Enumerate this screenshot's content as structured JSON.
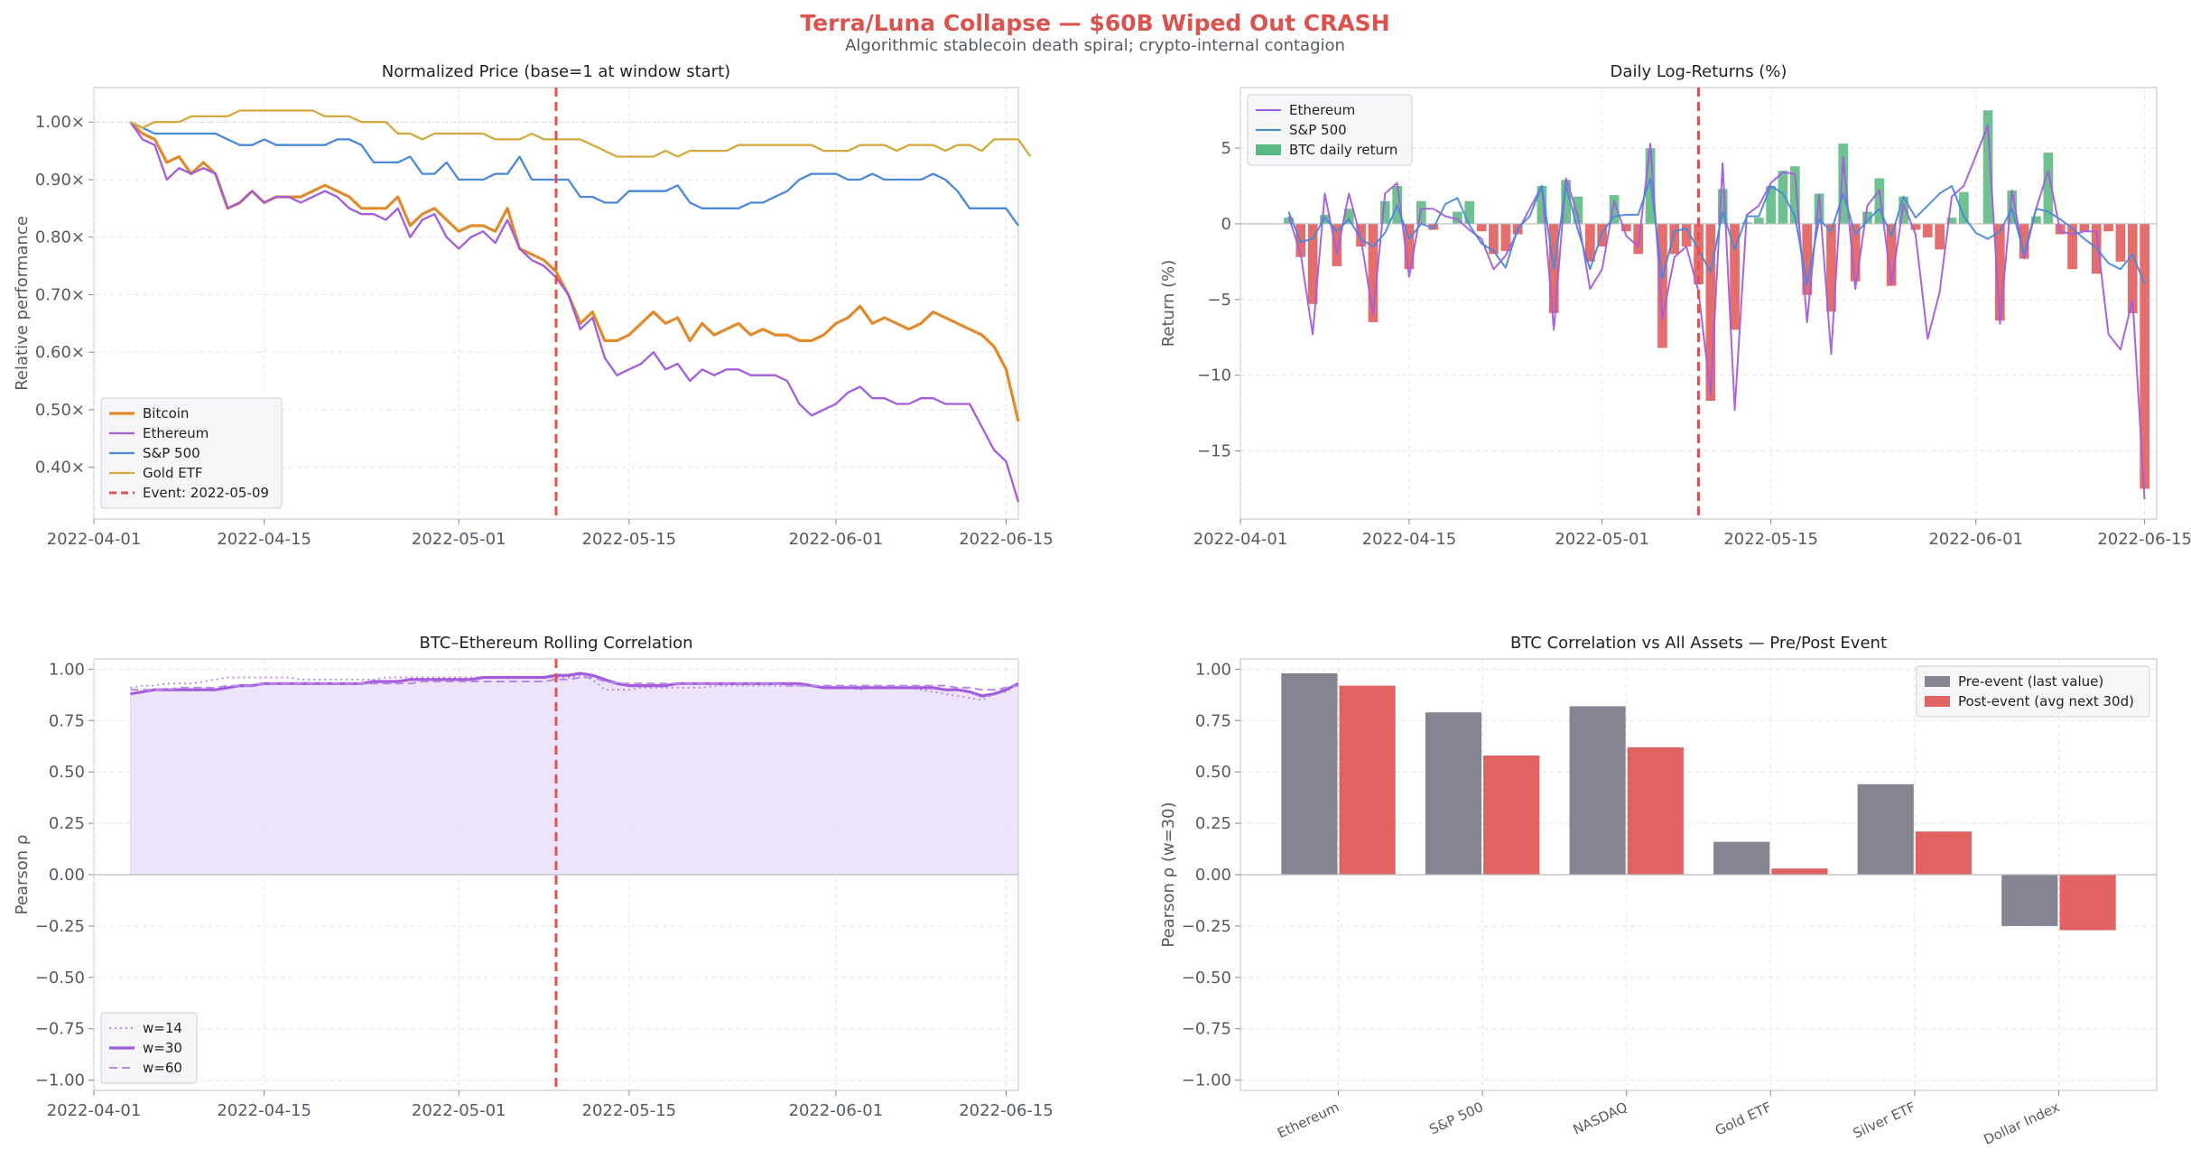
{
  "figure": {
    "title": "Terra/Luna Collapse — $60B Wiped Out  CRASH",
    "subtitle": "Algorithmic stablecoin death spiral; crypto-internal contagion",
    "title_color": "#d9534f"
  },
  "chart_data": [
    {
      "id": "price",
      "type": "line",
      "title": "Normalized Price (base=1 at window start)",
      "xlabel": "",
      "ylabel": "Relative performance",
      "xlim": [
        "2022-04-01",
        "2022-06-16"
      ],
      "ylim": [
        0.31,
        1.06
      ],
      "xticks": [
        "2022-04-01",
        "2022-04-15",
        "2022-05-01",
        "2022-05-15",
        "2022-06-01",
        "2022-06-15"
      ],
      "yticks": [
        0.4,
        0.5,
        0.6,
        0.7,
        0.8,
        0.9,
        1.0
      ],
      "ytick_labels": [
        "0.40×",
        "0.50×",
        "0.60×",
        "0.70×",
        "0.80×",
        "0.90×",
        "1.00×"
      ],
      "grid": true,
      "legend_position": "lower-left",
      "event": {
        "date": "2022-05-09",
        "label": "Event: 2022-05-09",
        "color": "#e05252"
      },
      "series": [
        {
          "name": "Bitcoin",
          "color": "#e08a2c",
          "width": 3.2,
          "start": "2022-04-04",
          "values": [
            1.0,
            0.98,
            0.97,
            0.93,
            0.94,
            0.91,
            0.93,
            0.91,
            0.85,
            0.86,
            0.88,
            0.86,
            0.87,
            0.87,
            0.87,
            0.88,
            0.89,
            0.88,
            0.87,
            0.85,
            0.85,
            0.85,
            0.87,
            0.82,
            0.84,
            0.85,
            0.83,
            0.81,
            0.82,
            0.82,
            0.81,
            0.85,
            0.78,
            0.77,
            0.76,
            0.74,
            0.7,
            0.65,
            0.67,
            0.62,
            0.62,
            0.63,
            0.65,
            0.67,
            0.65,
            0.66,
            0.62,
            0.65,
            0.63,
            0.64,
            0.65,
            0.63,
            0.64,
            0.63,
            0.63,
            0.62,
            0.62,
            0.63,
            0.65,
            0.66,
            0.68,
            0.65,
            0.66,
            0.65,
            0.64,
            0.65,
            0.67,
            0.66,
            0.65,
            0.64,
            0.63,
            0.61,
            0.57,
            0.48
          ]
        },
        {
          "name": "Ethereum",
          "color": "#a35ddc",
          "width": 2.3,
          "start": "2022-04-04",
          "values": [
            1.0,
            0.97,
            0.96,
            0.9,
            0.92,
            0.91,
            0.92,
            0.91,
            0.85,
            0.86,
            0.88,
            0.86,
            0.87,
            0.87,
            0.86,
            0.87,
            0.88,
            0.87,
            0.85,
            0.84,
            0.84,
            0.83,
            0.85,
            0.8,
            0.83,
            0.84,
            0.8,
            0.78,
            0.8,
            0.81,
            0.79,
            0.83,
            0.78,
            0.76,
            0.75,
            0.73,
            0.7,
            0.64,
            0.66,
            0.59,
            0.56,
            0.57,
            0.58,
            0.6,
            0.57,
            0.58,
            0.55,
            0.57,
            0.56,
            0.57,
            0.57,
            0.56,
            0.56,
            0.56,
            0.55,
            0.51,
            0.49,
            0.5,
            0.51,
            0.53,
            0.54,
            0.52,
            0.52,
            0.51,
            0.51,
            0.52,
            0.52,
            0.51,
            0.51,
            0.51,
            0.47,
            0.43,
            0.41,
            0.34
          ]
        },
        {
          "name": "S&P 500",
          "color": "#4a88d8",
          "width": 2.3,
          "start": "2022-04-04",
          "values": [
            1.0,
            0.99,
            0.98,
            0.98,
            0.98,
            0.98,
            0.98,
            0.98,
            0.97,
            0.96,
            0.96,
            0.97,
            0.96,
            0.96,
            0.96,
            0.96,
            0.96,
            0.97,
            0.97,
            0.96,
            0.93,
            0.93,
            0.93,
            0.94,
            0.91,
            0.91,
            0.93,
            0.9,
            0.9,
            0.9,
            0.91,
            0.91,
            0.94,
            0.9,
            0.9,
            0.9,
            0.9,
            0.87,
            0.87,
            0.86,
            0.86,
            0.88,
            0.88,
            0.88,
            0.88,
            0.89,
            0.86,
            0.85,
            0.85,
            0.85,
            0.85,
            0.86,
            0.86,
            0.87,
            0.88,
            0.9,
            0.91,
            0.91,
            0.91,
            0.9,
            0.9,
            0.91,
            0.9,
            0.9,
            0.9,
            0.9,
            0.91,
            0.9,
            0.88,
            0.85,
            0.85,
            0.85,
            0.85,
            0.82
          ]
        },
        {
          "name": "Gold ETF",
          "color": "#d4a93f",
          "width": 2.3,
          "start": "2022-04-04",
          "values": [
            1.0,
            0.99,
            1.0,
            1.0,
            1.0,
            1.01,
            1.01,
            1.01,
            1.01,
            1.02,
            1.02,
            1.02,
            1.02,
            1.02,
            1.02,
            1.02,
            1.01,
            1.01,
            1.01,
            1.0,
            1.0,
            1.0,
            0.98,
            0.98,
            0.97,
            0.98,
            0.98,
            0.98,
            0.98,
            0.98,
            0.97,
            0.97,
            0.97,
            0.98,
            0.97,
            0.97,
            0.97,
            0.97,
            0.96,
            0.95,
            0.94,
            0.94,
            0.94,
            0.94,
            0.95,
            0.94,
            0.95,
            0.95,
            0.95,
            0.95,
            0.96,
            0.96,
            0.96,
            0.96,
            0.96,
            0.96,
            0.96,
            0.95,
            0.95,
            0.95,
            0.96,
            0.96,
            0.96,
            0.95,
            0.96,
            0.96,
            0.96,
            0.95,
            0.96,
            0.96,
            0.95,
            0.97,
            0.97,
            0.97,
            0.94
          ]
        }
      ]
    },
    {
      "id": "returns",
      "type": "bar",
      "title": "Daily Log-Returns (%)",
      "xlabel": "",
      "ylabel": "Return (%)",
      "xlim": [
        "2022-04-01",
        "2022-06-16"
      ],
      "ylim": [
        -19.5,
        9
      ],
      "xticks": [
        "2022-04-01",
        "2022-04-15",
        "2022-05-01",
        "2022-05-15",
        "2022-06-01",
        "2022-06-15"
      ],
      "yticks": [
        -15,
        -10,
        -5,
        0,
        5
      ],
      "ytick_labels": [
        "−15",
        "−10",
        "−5",
        "0",
        "5"
      ],
      "grid": true,
      "legend_position": "upper-left",
      "event": {
        "date": "2022-05-09",
        "color": "#e05252"
      },
      "bars": {
        "name": "BTC daily return",
        "pos_color": "#5cb883",
        "neg_color": "#e05a5a",
        "start": "2022-04-05",
        "values": [
          0.4,
          -2.2,
          -5.3,
          0.6,
          -2.8,
          1.0,
          -1.5,
          -6.5,
          1.5,
          2.5,
          -3.0,
          1.5,
          -0.4,
          0,
          0.8,
          1.5,
          -0.5,
          -2.0,
          -1.8,
          -0.7,
          0,
          2.5,
          -5.9,
          2.9,
          1.8,
          -2.5,
          -1.5,
          1.9,
          -0.5,
          -2.0,
          5.0,
          -8.2,
          -2.0,
          -1.5,
          -4.0,
          -11.7,
          2.3,
          -7.0,
          0.1,
          0.4,
          2.5,
          3.5,
          3.8,
          -4.7,
          2.0,
          -5.8,
          5.3,
          -3.8,
          0.8,
          3.0,
          -4.1,
          1.8,
          -0.4,
          -0.9,
          -1.7,
          0.4,
          2.1,
          0,
          7.5,
          -6.4,
          2.2,
          -2.3,
          0.5,
          4.7,
          -0.7,
          -3.0,
          -0.5,
          -3.3,
          -0.5,
          -2.5,
          -5.9,
          -17.5
        ]
      },
      "series": [
        {
          "name": "Ethereum",
          "color": "#a35ddc",
          "start": "2022-04-05",
          "values": [
            0.5,
            -2.0,
            -7.3,
            2.0,
            -2.0,
            2.0,
            -1.0,
            -6.0,
            2.0,
            2.7,
            -3.5,
            1.0,
            1.0,
            0.5,
            0.3,
            -0.4,
            -1.0,
            -3.0,
            -2.1,
            -0.5,
            1.0,
            2.5,
            -7.0,
            3.0,
            0.5,
            -4.3,
            -3.0,
            1.5,
            -0.8,
            -1.5,
            5.3,
            -6.3,
            -2.2,
            -1.5,
            -4.5,
            -11.3,
            4.0,
            -12.3,
            0.6,
            1.2,
            2.7,
            3.4,
            3.3,
            -6.5,
            1.9,
            -8.6,
            4.4,
            -4.3,
            1.2,
            2.2,
            -4.0,
            1.3,
            -0.7,
            -7.6,
            -4.5,
            1.8,
            2.5,
            4.5,
            6.5,
            -6.6,
            2.2,
            -2.3,
            1.0,
            3.5,
            -0.5,
            -0.7,
            -0.5,
            -0.5,
            -7.3,
            -8.3,
            -5.0,
            -18.2
          ]
        },
        {
          "name": "S&P 500",
          "color": "#4a88d8",
          "start": "2022-04-05",
          "values": [
            0.8,
            -1.2,
            -1.0,
            0.4,
            -0.5,
            0.3,
            -1.0,
            -1.5,
            -0.6,
            1.2,
            -1.0,
            0,
            -0.3,
            1.3,
            1.7,
            -0.1,
            -1.3,
            -1.8,
            -2.9,
            -0.3,
            0.5,
            2.5,
            -3.0,
            2.5,
            -0.4,
            -3.0,
            -0.6,
            0.5,
            0.6,
            0.6,
            3.0,
            -3.6,
            -0.5,
            -0.3,
            -1.7,
            -3.2,
            0.8,
            -1.7,
            0.5,
            0.5,
            2.5,
            2.0,
            0.5,
            -4.0,
            0.3,
            -0.5,
            2.0,
            -0.7,
            0.2,
            1.0,
            -0.8,
            1.8,
            0.4,
            1.2,
            2.0,
            2.5,
            0.5,
            -0.6,
            -1.0,
            -0.5,
            1.0,
            -2.0,
            1.0,
            0.8,
            0.3,
            -0.3,
            -1.0,
            -1.6,
            -2.6,
            -3.0,
            -2.0,
            -4.0
          ]
        }
      ]
    },
    {
      "id": "rolling",
      "type": "line",
      "title": "BTC–Ethereum Rolling Correlation",
      "xlabel": "",
      "ylabel": "Pearson ρ",
      "xlim": [
        "2022-04-01",
        "2022-06-16"
      ],
      "ylim": [
        -1.05,
        1.05
      ],
      "xticks": [
        "2022-04-01",
        "2022-04-15",
        "2022-05-01",
        "2022-05-15",
        "2022-06-01",
        "2022-06-15"
      ],
      "yticks": [
        -1.0,
        -0.75,
        -0.5,
        -0.25,
        0,
        0.25,
        0.5,
        0.75,
        1.0
      ],
      "ytick_labels": [
        "−1.00",
        "−0.75",
        "−0.50",
        "−0.25",
        "0.00",
        "0.25",
        "0.50",
        "0.75",
        "1.00"
      ],
      "grid": true,
      "legend_position": "lower-left",
      "event": {
        "date": "2022-05-09",
        "color": "#e05252"
      },
      "series": [
        {
          "name": "w=14",
          "color": "#b88ae8",
          "dash": "dotted",
          "start": "2022-04-04",
          "values": [
            0.91,
            0.92,
            0.92,
            0.93,
            0.93,
            0.93,
            0.94,
            0.95,
            0.96,
            0.96,
            0.96,
            0.96,
            0.96,
            0.96,
            0.95,
            0.95,
            0.95,
            0.95,
            0.95,
            0.95,
            0.95,
            0.96,
            0.96,
            0.96,
            0.96,
            0.96,
            0.96,
            0.96,
            0.96,
            0.96,
            0.96,
            0.96,
            0.96,
            0.96,
            0.96,
            0.96,
            0.96,
            0.97,
            0.95,
            0.9,
            0.9,
            0.9,
            0.91,
            0.91,
            0.91,
            0.91,
            0.91,
            0.91,
            0.92,
            0.92,
            0.92,
            0.92,
            0.92,
            0.92,
            0.92,
            0.92,
            0.92,
            0.91,
            0.91,
            0.91,
            0.9,
            0.91,
            0.91,
            0.91,
            0.91,
            0.9,
            0.89,
            0.88,
            0.87,
            0.86,
            0.85,
            0.88,
            0.89,
            0.93
          ]
        },
        {
          "name": "w=30",
          "color": "#a35ddc",
          "dash": "solid",
          "width": 3.2,
          "start": "2022-04-04",
          "values": [
            0.88,
            0.89,
            0.9,
            0.9,
            0.9,
            0.9,
            0.9,
            0.9,
            0.91,
            0.92,
            0.92,
            0.93,
            0.93,
            0.93,
            0.93,
            0.93,
            0.93,
            0.93,
            0.93,
            0.93,
            0.94,
            0.94,
            0.94,
            0.95,
            0.95,
            0.95,
            0.95,
            0.95,
            0.95,
            0.96,
            0.96,
            0.96,
            0.96,
            0.96,
            0.96,
            0.97,
            0.97,
            0.98,
            0.97,
            0.95,
            0.93,
            0.92,
            0.92,
            0.92,
            0.92,
            0.93,
            0.93,
            0.93,
            0.93,
            0.93,
            0.93,
            0.93,
            0.93,
            0.93,
            0.93,
            0.93,
            0.92,
            0.91,
            0.91,
            0.91,
            0.91,
            0.91,
            0.91,
            0.91,
            0.91,
            0.91,
            0.91,
            0.9,
            0.9,
            0.89,
            0.87,
            0.88,
            0.9,
            0.93
          ]
        },
        {
          "name": "w=60",
          "color": "#b88ae8",
          "dash": "dashed",
          "start": "2022-04-04",
          "values": [
            0.9,
            0.9,
            0.9,
            0.9,
            0.91,
            0.91,
            0.91,
            0.91,
            0.92,
            0.92,
            0.92,
            0.93,
            0.93,
            0.93,
            0.93,
            0.93,
            0.93,
            0.93,
            0.93,
            0.93,
            0.93,
            0.93,
            0.93,
            0.93,
            0.94,
            0.94,
            0.94,
            0.94,
            0.94,
            0.94,
            0.94,
            0.94,
            0.94,
            0.94,
            0.94,
            0.95,
            0.95,
            0.96,
            0.96,
            0.94,
            0.93,
            0.93,
            0.93,
            0.93,
            0.93,
            0.93,
            0.93,
            0.93,
            0.93,
            0.93,
            0.93,
            0.93,
            0.93,
            0.93,
            0.92,
            0.92,
            0.92,
            0.92,
            0.92,
            0.92,
            0.92,
            0.92,
            0.92,
            0.92,
            0.92,
            0.92,
            0.92,
            0.92,
            0.91,
            0.91,
            0.9,
            0.9,
            0.91,
            0.92
          ]
        }
      ],
      "fill_color": "#e9dcf7"
    },
    {
      "id": "prepost",
      "type": "bar",
      "title": "BTC Correlation vs All Assets — Pre/Post Event",
      "xlabel": "",
      "ylabel": "Pearson ρ (w=30)",
      "ylim": [
        -1.05,
        1.05
      ],
      "yticks": [
        -1.0,
        -0.75,
        -0.5,
        -0.25,
        0,
        0.25,
        0.5,
        0.75,
        1.0
      ],
      "ytick_labels": [
        "−1.00",
        "−0.75",
        "−0.50",
        "−0.25",
        "0.00",
        "0.25",
        "0.50",
        "0.75",
        "1.00"
      ],
      "grid": true,
      "legend_position": "upper-right",
      "categories": [
        "Ethereum",
        "S&P 500",
        "NASDAQ",
        "Gold ETF",
        "Silver ETF",
        "Dollar Index"
      ],
      "series": [
        {
          "name": "Pre-event (last value)",
          "color": "#858592",
          "values": [
            0.98,
            0.79,
            0.82,
            0.16,
            0.44,
            -0.25
          ]
        },
        {
          "name": "Post-event (avg next 30d)",
          "color": "#e06262",
          "values": [
            0.92,
            0.58,
            0.62,
            0.03,
            0.21,
            -0.27
          ]
        }
      ]
    }
  ]
}
